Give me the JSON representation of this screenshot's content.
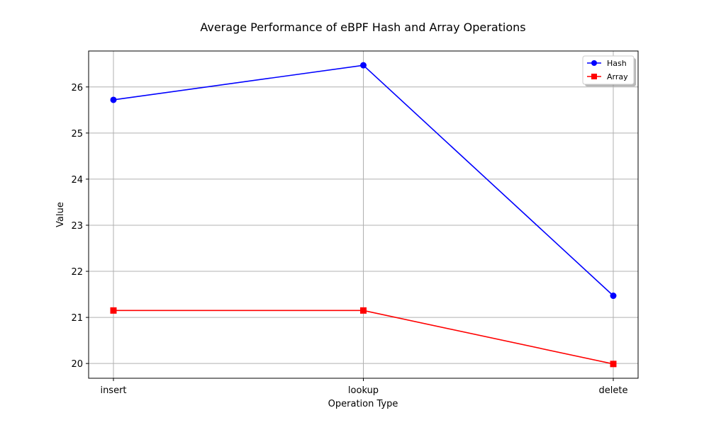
{
  "chart_data": {
    "type": "line",
    "title": "Average Performance of eBPF Hash and Array Operations",
    "xlabel": "Operation Type",
    "ylabel": "Value",
    "categories": [
      "insert",
      "lookup",
      "delete"
    ],
    "ylim": [
      19.68,
      26.78
    ],
    "yticks": [
      20,
      21,
      22,
      23,
      24,
      25,
      26
    ],
    "grid": true,
    "legend_position": "top-right",
    "series": [
      {
        "name": "Hash",
        "values": [
          25.72,
          26.47,
          21.47
        ],
        "color": "#0000ff",
        "marker": "circle"
      },
      {
        "name": "Array",
        "values": [
          21.15,
          21.15,
          19.99
        ],
        "color": "#ff0000",
        "marker": "square"
      }
    ]
  }
}
